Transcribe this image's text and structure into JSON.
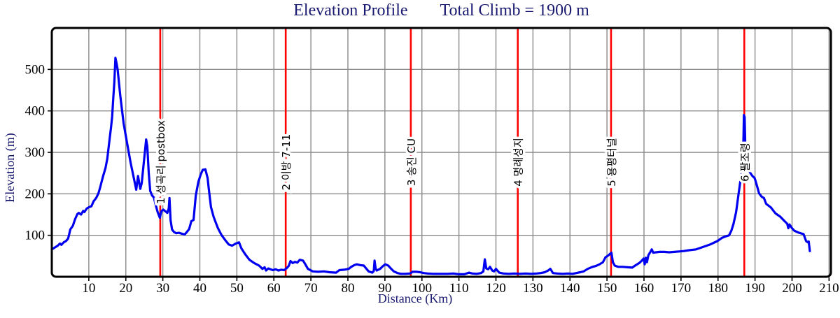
{
  "title": {
    "left": "Elevation Profile",
    "right": "Total Climb = 1900 m"
  },
  "colors": {
    "line": "#0000f0",
    "checkpoint_line": "#ff0000",
    "grid": "#8a8a8a",
    "axis_border": "#000000",
    "tick_text": "#000000",
    "title_text": "#191970",
    "axis_label_text": "#191970",
    "checkpoint_text": "#000000",
    "background": "#ffffff"
  },
  "chart_data": {
    "type": "line",
    "title": "Elevation Profile",
    "annotation": "Total Climb = 1900 m",
    "xlabel": "Distance (Km)",
    "ylabel": "Elevation (m)",
    "xlim": [
      0,
      210.5
    ],
    "ylim": [
      0,
      600
    ],
    "x_ticks": [
      10,
      20,
      30,
      40,
      50,
      60,
      70,
      80,
      90,
      100,
      110,
      120,
      130,
      140,
      150,
      160,
      170,
      180,
      190,
      200,
      210
    ],
    "y_ticks": [
      100,
      200,
      300,
      400,
      500
    ],
    "grid": true,
    "legend": "none",
    "checkpoints": [
      {
        "km": 29.3,
        "label": "1 성곡리 postbox"
      },
      {
        "km": 63.2,
        "label": "2 이방 7-11"
      },
      {
        "km": 97.0,
        "label": "3 송진 CU"
      },
      {
        "km": 125.9,
        "label": "4 명례성지"
      },
      {
        "km": 151.1,
        "label": "5 용평터널"
      },
      {
        "km": 187.1,
        "label": "6 팔조령"
      }
    ],
    "series": [
      {
        "name": "elevation_m_vs_km",
        "points": [
          [
            0,
            66
          ],
          [
            0.7,
            70
          ],
          [
            1.6,
            75
          ],
          [
            2.2,
            80
          ],
          [
            2.6,
            77
          ],
          [
            3.2,
            83
          ],
          [
            3.8,
            86
          ],
          [
            4.4,
            92
          ],
          [
            4.7,
            103
          ],
          [
            5.0,
            114
          ],
          [
            5.7,
            123
          ],
          [
            6.3,
            139
          ],
          [
            6.9,
            151
          ],
          [
            7.3,
            154
          ],
          [
            7.9,
            150
          ],
          [
            8.5,
            159
          ],
          [
            8.8,
            156
          ],
          [
            9.5,
            165
          ],
          [
            10.1,
            168
          ],
          [
            10.7,
            170
          ],
          [
            11.3,
            182
          ],
          [
            12.0,
            190
          ],
          [
            12.6,
            201
          ],
          [
            13.0,
            213
          ],
          [
            13.8,
            241
          ],
          [
            14.5,
            262
          ],
          [
            15.0,
            285
          ],
          [
            15.6,
            331
          ],
          [
            16.0,
            360
          ],
          [
            16.3,
            386
          ],
          [
            16.6,
            430
          ],
          [
            16.9,
            471
          ],
          [
            17.2,
            528
          ],
          [
            17.5,
            515
          ],
          [
            17.8,
            499
          ],
          [
            18.5,
            437
          ],
          [
            19.4,
            370
          ],
          [
            20.4,
            319
          ],
          [
            21.3,
            275
          ],
          [
            22.0,
            245
          ],
          [
            22.4,
            228
          ],
          [
            22.8,
            210
          ],
          [
            23.3,
            243
          ],
          [
            23.9,
            212
          ],
          [
            24.3,
            226
          ],
          [
            24.9,
            280
          ],
          [
            25.5,
            331
          ],
          [
            25.8,
            315
          ],
          [
            26.2,
            250
          ],
          [
            26.6,
            207
          ],
          [
            27.1,
            196
          ],
          [
            27.6,
            191
          ],
          [
            28.1,
            172
          ],
          [
            28.6,
            156
          ],
          [
            29.2,
            142
          ],
          [
            29.6,
            158
          ],
          [
            30.1,
            162
          ],
          [
            30.7,
            158
          ],
          [
            31.2,
            154
          ],
          [
            31.6,
            165
          ],
          [
            31.8,
            190
          ],
          [
            32.1,
            136
          ],
          [
            32.5,
            114
          ],
          [
            33.0,
            108
          ],
          [
            33.6,
            105
          ],
          [
            34.3,
            106
          ],
          [
            35.1,
            104
          ],
          [
            35.9,
            102
          ],
          [
            36.5,
            108
          ],
          [
            37.1,
            115
          ],
          [
            37.7,
            134
          ],
          [
            38.3,
            137
          ],
          [
            38.9,
            196
          ],
          [
            39.6,
            229
          ],
          [
            40.2,
            246
          ],
          [
            40.8,
            258
          ],
          [
            41.5,
            259
          ],
          [
            42.1,
            238
          ],
          [
            42.4,
            213
          ],
          [
            43.0,
            168
          ],
          [
            43.7,
            145
          ],
          [
            44.3,
            131
          ],
          [
            44.9,
            117
          ],
          [
            45.9,
            100
          ],
          [
            46.8,
            89
          ],
          [
            47.8,
            78
          ],
          [
            48.7,
            75
          ],
          [
            49.7,
            80
          ],
          [
            50.6,
            83
          ],
          [
            51.2,
            69
          ],
          [
            52.2,
            55
          ],
          [
            53.4,
            41
          ],
          [
            54.7,
            33
          ],
          [
            56.0,
            27
          ],
          [
            56.9,
            19
          ],
          [
            57.5,
            23
          ],
          [
            57.9,
            15
          ],
          [
            58.5,
            20
          ],
          [
            59.7,
            16
          ],
          [
            60.5,
            18
          ],
          [
            61.2,
            15
          ],
          [
            62.0,
            17
          ],
          [
            62.8,
            16
          ],
          [
            63.5,
            21
          ],
          [
            64.0,
            26
          ],
          [
            64.5,
            38
          ],
          [
            65.1,
            33
          ],
          [
            65.7,
            36
          ],
          [
            66.3,
            34
          ],
          [
            67.0,
            41
          ],
          [
            67.9,
            39
          ],
          [
            68.5,
            30
          ],
          [
            69.2,
            19
          ],
          [
            70.5,
            13
          ],
          [
            72.0,
            12
          ],
          [
            73.5,
            13
          ],
          [
            75.0,
            11
          ],
          [
            76.8,
            10
          ],
          [
            77.7,
            16
          ],
          [
            79.0,
            17
          ],
          [
            80.2,
            19
          ],
          [
            80.9,
            24
          ],
          [
            81.7,
            28
          ],
          [
            82.4,
            30
          ],
          [
            83.4,
            28
          ],
          [
            84.3,
            27
          ],
          [
            85.6,
            13
          ],
          [
            86.6,
            10
          ],
          [
            87.0,
            14
          ],
          [
            87.2,
            39
          ],
          [
            87.5,
            20
          ],
          [
            87.8,
            15
          ],
          [
            88.7,
            19
          ],
          [
            89.5,
            26
          ],
          [
            90.1,
            30
          ],
          [
            90.9,
            27
          ],
          [
            91.6,
            20
          ],
          [
            92.4,
            13
          ],
          [
            93.4,
            9
          ],
          [
            94.3,
            7
          ],
          [
            95.5,
            7
          ],
          [
            96.8,
            8
          ],
          [
            97.5,
            12
          ],
          [
            98.5,
            12
          ],
          [
            99.5,
            11
          ],
          [
            100.5,
            9
          ],
          [
            101.5,
            8
          ],
          [
            103,
            7
          ],
          [
            105,
            7
          ],
          [
            107,
            7
          ],
          [
            108.5,
            8
          ],
          [
            110,
            6
          ],
          [
            111.5,
            6
          ],
          [
            112.7,
            10
          ],
          [
            113.6,
            8
          ],
          [
            114.8,
            7
          ],
          [
            116,
            9
          ],
          [
            116.6,
            13
          ],
          [
            117.0,
            42
          ],
          [
            117.4,
            20
          ],
          [
            117.9,
            18
          ],
          [
            118.4,
            24
          ],
          [
            119.0,
            15
          ],
          [
            119.5,
            13
          ],
          [
            120.0,
            19
          ],
          [
            120.9,
            10
          ],
          [
            122,
            8
          ],
          [
            123.5,
            7
          ],
          [
            125,
            8
          ],
          [
            126.5,
            7
          ],
          [
            128,
            8
          ],
          [
            129.5,
            7
          ],
          [
            131,
            8
          ],
          [
            132.1,
            9
          ],
          [
            133.2,
            11
          ],
          [
            134.1,
            15
          ],
          [
            134.7,
            19
          ],
          [
            135.4,
            9
          ],
          [
            136.5,
            8
          ],
          [
            138,
            7
          ],
          [
            139.5,
            8
          ],
          [
            140.7,
            7
          ],
          [
            141.7,
            9
          ],
          [
            142.8,
            11
          ],
          [
            143.7,
            13
          ],
          [
            144.8,
            19
          ],
          [
            146.1,
            24
          ],
          [
            147.0,
            26
          ],
          [
            148.0,
            30
          ],
          [
            148.9,
            35
          ],
          [
            149.6,
            47
          ],
          [
            150.3,
            51
          ],
          [
            150.9,
            56
          ],
          [
            151.2,
            58
          ],
          [
            151.6,
            35
          ],
          [
            152.1,
            27
          ],
          [
            153.0,
            24
          ],
          [
            154.2,
            24
          ],
          [
            155.5,
            23
          ],
          [
            156.8,
            22
          ],
          [
            157.6,
            27
          ],
          [
            158.7,
            33
          ],
          [
            159.3,
            38
          ],
          [
            159.9,
            44
          ],
          [
            160.2,
            30
          ],
          [
            160.5,
            46
          ],
          [
            160.8,
            35
          ],
          [
            161.2,
            52
          ],
          [
            161.8,
            61
          ],
          [
            162.1,
            66
          ],
          [
            162.5,
            58
          ],
          [
            163.2,
            59
          ],
          [
            164.2,
            60
          ],
          [
            165.5,
            60
          ],
          [
            166.8,
            59
          ],
          [
            168.2,
            60
          ],
          [
            169.5,
            61
          ],
          [
            170.8,
            62
          ],
          [
            172.2,
            64
          ],
          [
            174.1,
            66
          ],
          [
            176.0,
            72
          ],
          [
            177.9,
            78
          ],
          [
            179.8,
            86
          ],
          [
            181.1,
            94
          ],
          [
            182.0,
            97
          ],
          [
            183.0,
            100
          ],
          [
            183.6,
            111
          ],
          [
            184.2,
            128
          ],
          [
            184.9,
            156
          ],
          [
            185.5,
            196
          ],
          [
            186.1,
            235
          ],
          [
            186.4,
            257
          ],
          [
            186.7,
            275
          ],
          [
            186.9,
            340
          ],
          [
            187.0,
            390
          ],
          [
            187.2,
            385
          ],
          [
            187.4,
            300
          ],
          [
            187.7,
            282
          ],
          [
            188.1,
            270
          ],
          [
            188.6,
            252
          ],
          [
            189.3,
            243
          ],
          [
            189.9,
            238
          ],
          [
            190.5,
            220
          ],
          [
            191.1,
            201
          ],
          [
            191.8,
            193
          ],
          [
            192.4,
            190
          ],
          [
            193.0,
            176
          ],
          [
            194.3,
            167
          ],
          [
            195.5,
            153
          ],
          [
            196.8,
            145
          ],
          [
            198.0,
            134
          ],
          [
            198.7,
            128
          ],
          [
            199.0,
            117
          ],
          [
            199.3,
            126
          ],
          [
            200.0,
            117
          ],
          [
            200.6,
            111
          ],
          [
            201.9,
            106
          ],
          [
            203.1,
            103
          ],
          [
            203.8,
            86
          ],
          [
            204.3,
            83
          ],
          [
            204.5,
            85
          ],
          [
            204.8,
            62
          ]
        ]
      }
    ]
  }
}
